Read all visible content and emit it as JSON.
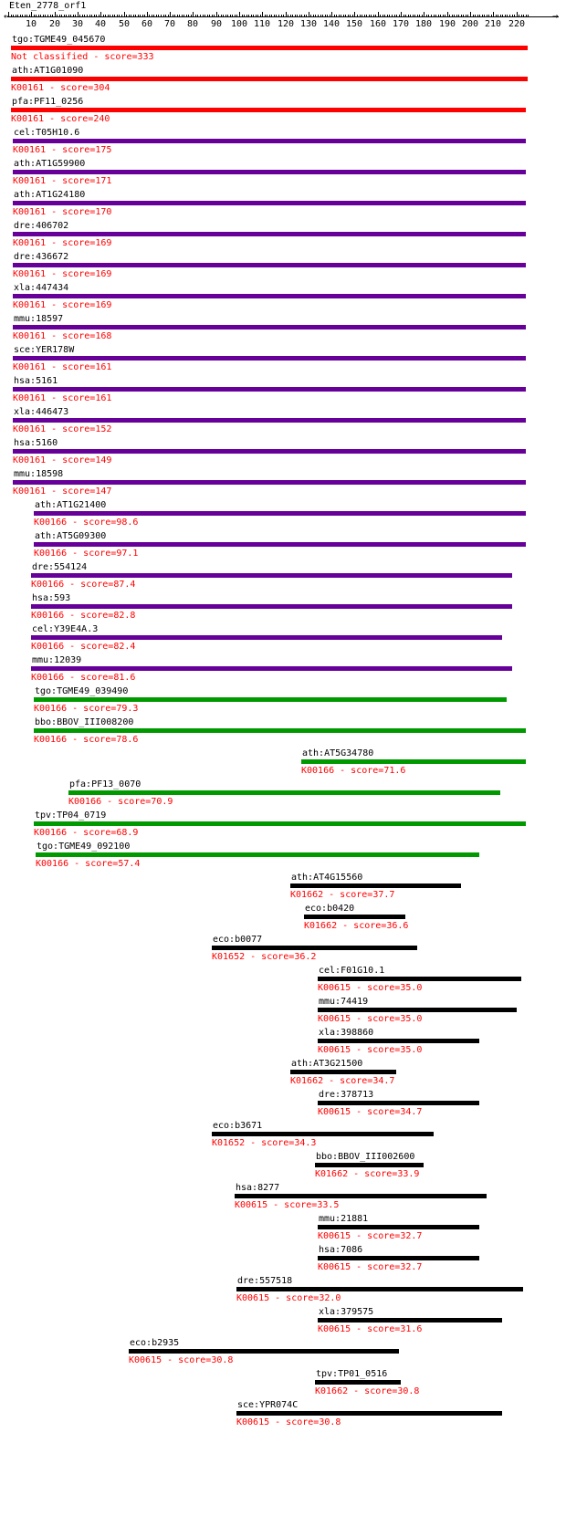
{
  "query": {
    "name": "Eten_2778_orf1"
  },
  "axis": {
    "min": 0,
    "max": 225,
    "ticks": [
      10,
      20,
      30,
      40,
      50,
      60,
      70,
      80,
      90,
      100,
      110,
      120,
      130,
      140,
      150,
      160,
      170,
      180,
      190,
      200,
      210,
      220
    ]
  },
  "colors": {
    "red": "#ff0000",
    "purple": "#660099",
    "green": "#009900",
    "black": "#000000"
  },
  "hits": [
    {
      "name": "tgo:TGME49_045670",
      "ko": "Not classified",
      "score": "333",
      "start": 1,
      "end": 225,
      "color": "red"
    },
    {
      "name": "ath:AT1G01090",
      "ko": "K00161",
      "score": "304",
      "start": 1,
      "end": 225,
      "color": "red"
    },
    {
      "name": "pfa:PF11_0256",
      "ko": "K00161",
      "score": "240",
      "start": 1,
      "end": 224,
      "color": "red"
    },
    {
      "name": "cel:T05H10.6",
      "ko": "K00161",
      "score": "175",
      "start": 2,
      "end": 224,
      "color": "purple"
    },
    {
      "name": "ath:AT1G59900",
      "ko": "K00161",
      "score": "171",
      "start": 2,
      "end": 224,
      "color": "purple"
    },
    {
      "name": "ath:AT1G24180",
      "ko": "K00161",
      "score": "170",
      "start": 2,
      "end": 224,
      "color": "purple"
    },
    {
      "name": "dre:406702",
      "ko": "K00161",
      "score": "169",
      "start": 2,
      "end": 224,
      "color": "purple"
    },
    {
      "name": "dre:436672",
      "ko": "K00161",
      "score": "169",
      "start": 2,
      "end": 224,
      "color": "purple"
    },
    {
      "name": "xla:447434",
      "ko": "K00161",
      "score": "169",
      "start": 2,
      "end": 224,
      "color": "purple"
    },
    {
      "name": "mmu:18597",
      "ko": "K00161",
      "score": "168",
      "start": 2,
      "end": 224,
      "color": "purple"
    },
    {
      "name": "sce:YER178W",
      "ko": "K00161",
      "score": "161",
      "start": 2,
      "end": 224,
      "color": "purple"
    },
    {
      "name": "hsa:5161",
      "ko": "K00161",
      "score": "161",
      "start": 2,
      "end": 224,
      "color": "purple"
    },
    {
      "name": "xla:446473",
      "ko": "K00161",
      "score": "152",
      "start": 2,
      "end": 224,
      "color": "purple"
    },
    {
      "name": "hsa:5160",
      "ko": "K00161",
      "score": "149",
      "start": 2,
      "end": 224,
      "color": "purple"
    },
    {
      "name": "mmu:18598",
      "ko": "K00161",
      "score": "147",
      "start": 2,
      "end": 224,
      "color": "purple"
    },
    {
      "name": "ath:AT1G21400",
      "ko": "K00166",
      "score": "98.6",
      "start": 11,
      "end": 224,
      "color": "purple"
    },
    {
      "name": "ath:AT5G09300",
      "ko": "K00166",
      "score": "97.1",
      "start": 11,
      "end": 224,
      "color": "purple"
    },
    {
      "name": "dre:554124",
      "ko": "K00166",
      "score": "87.4",
      "start": 10,
      "end": 218,
      "color": "purple"
    },
    {
      "name": "hsa:593",
      "ko": "K00166",
      "score": "82.8",
      "start": 10,
      "end": 218,
      "color": "purple"
    },
    {
      "name": "cel:Y39E4A.3",
      "ko": "K00166",
      "score": "82.4",
      "start": 10,
      "end": 214,
      "color": "purple"
    },
    {
      "name": "mmu:12039",
      "ko": "K00166",
      "score": "81.6",
      "start": 10,
      "end": 218,
      "color": "purple"
    },
    {
      "name": "tgo:TGME49_039490",
      "ko": "K00166",
      "score": "79.3",
      "start": 11,
      "end": 216,
      "color": "green"
    },
    {
      "name": "bbo:BBOV_III008200",
      "ko": "K00166",
      "score": "78.6",
      "start": 11,
      "end": 224,
      "color": "green"
    },
    {
      "name": "ath:AT5G34780",
      "ko": "K00166",
      "score": "71.6",
      "start": 127,
      "end": 224,
      "color": "green"
    },
    {
      "name": "pfa:PF13_0070",
      "ko": "K00166",
      "score": "70.9",
      "start": 26,
      "end": 213,
      "color": "green"
    },
    {
      "name": "tpv:TP04_0719",
      "ko": "K00166",
      "score": "68.9",
      "start": 11,
      "end": 224,
      "color": "green"
    },
    {
      "name": "tgo:TGME49_092100",
      "ko": "K00166",
      "score": "57.4",
      "start": 12,
      "end": 204,
      "color": "green"
    },
    {
      "name": "ath:AT4G15560",
      "ko": "K01662",
      "score": "37.7",
      "start": 122,
      "end": 196,
      "color": "black"
    },
    {
      "name": "eco:b0420",
      "ko": "K01662",
      "score": "36.6",
      "start": 128,
      "end": 172,
      "color": "black"
    },
    {
      "name": "eco:b0077",
      "ko": "K01652",
      "score": "36.2",
      "start": 88,
      "end": 177,
      "color": "black"
    },
    {
      "name": "cel:F01G10.1",
      "ko": "K00615",
      "score": "35.0",
      "start": 134,
      "end": 222,
      "color": "black"
    },
    {
      "name": "mmu:74419",
      "ko": "K00615",
      "score": "35.0",
      "start": 134,
      "end": 220,
      "color": "black"
    },
    {
      "name": "xla:398860",
      "ko": "K00615",
      "score": "35.0",
      "start": 134,
      "end": 204,
      "color": "black"
    },
    {
      "name": "ath:AT3G21500",
      "ko": "K01662",
      "score": "34.7",
      "start": 122,
      "end": 168,
      "color": "black"
    },
    {
      "name": "dre:378713",
      "ko": "K00615",
      "score": "34.7",
      "start": 134,
      "end": 204,
      "color": "black"
    },
    {
      "name": "eco:b3671",
      "ko": "K01652",
      "score": "34.3",
      "start": 88,
      "end": 184,
      "color": "black"
    },
    {
      "name": "bbo:BBOV_III002600",
      "ko": "K01662",
      "score": "33.9",
      "start": 133,
      "end": 180,
      "color": "black"
    },
    {
      "name": "hsa:8277",
      "ko": "K00615",
      "score": "33.5",
      "start": 98,
      "end": 207,
      "color": "black"
    },
    {
      "name": "mmu:21881",
      "ko": "K00615",
      "score": "32.7",
      "start": 134,
      "end": 204,
      "color": "black"
    },
    {
      "name": "hsa:7086",
      "ko": "K00615",
      "score": "32.7",
      "start": 134,
      "end": 204,
      "color": "black"
    },
    {
      "name": "dre:557518",
      "ko": "K00615",
      "score": "32.0",
      "start": 99,
      "end": 223,
      "color": "black"
    },
    {
      "name": "xla:379575",
      "ko": "K00615",
      "score": "31.6",
      "start": 134,
      "end": 214,
      "color": "black"
    },
    {
      "name": "eco:b2935",
      "ko": "K00615",
      "score": "30.8",
      "start": 52,
      "end": 169,
      "color": "black"
    },
    {
      "name": "tpv:TP01_0516",
      "ko": "K01662",
      "score": "30.8",
      "start": 133,
      "end": 170,
      "color": "black"
    },
    {
      "name": "sce:YPR074C",
      "ko": "K00615",
      "score": "30.8",
      "start": 99,
      "end": 214,
      "color": "black"
    }
  ]
}
